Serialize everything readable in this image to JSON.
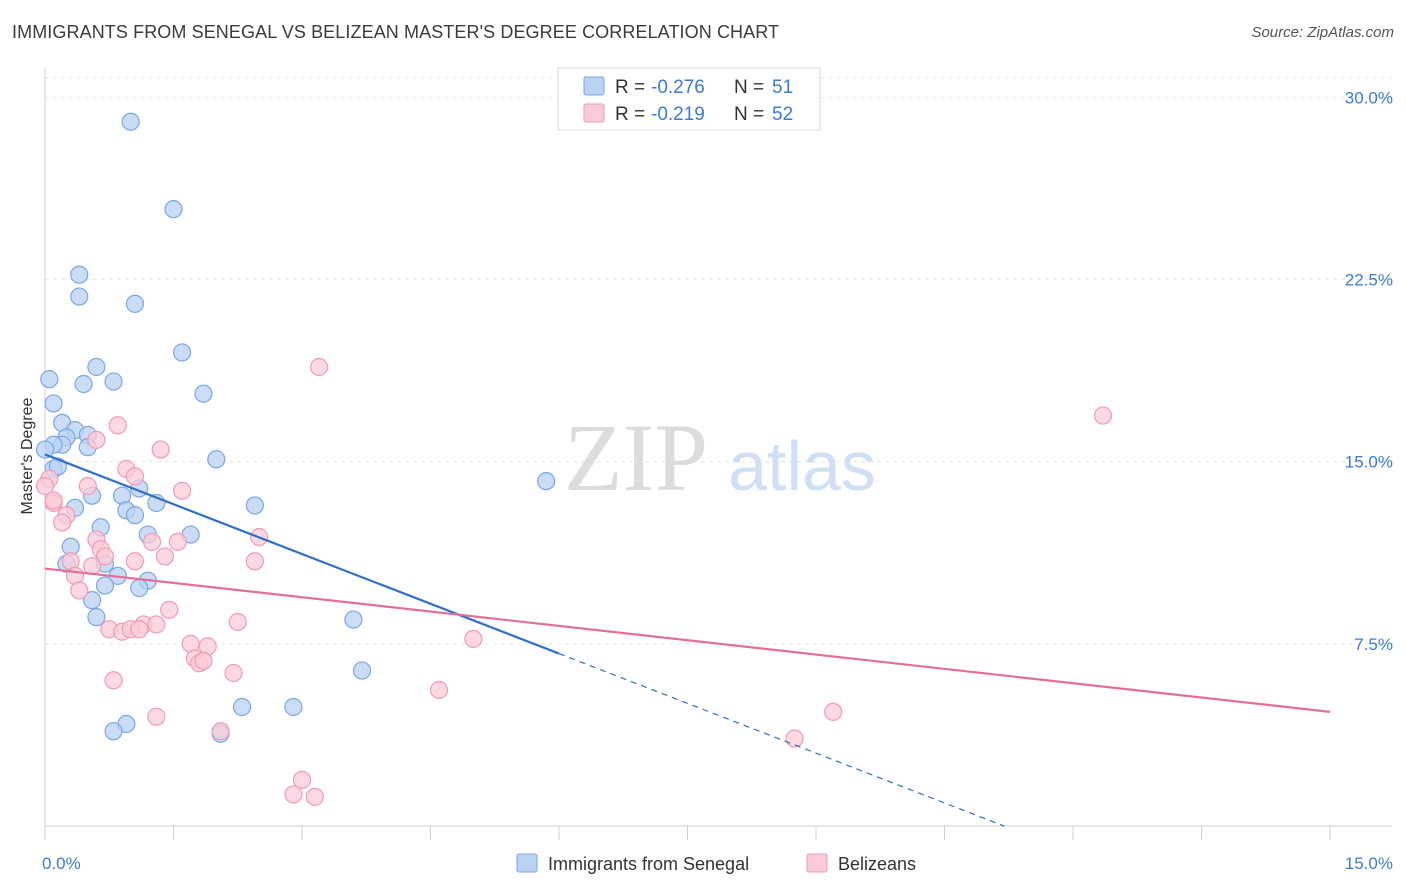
{
  "title": "IMMIGRANTS FROM SENEGAL VS BELIZEAN MASTER'S DEGREE CORRELATION CHART",
  "source": "Source: ZipAtlas.com",
  "chart_data": {
    "type": "scatter",
    "title": "IMMIGRANTS FROM SENEGAL VS BELIZEAN MASTER'S DEGREE CORRELATION CHART",
    "xlabel": "",
    "ylabel": "Master's Degree",
    "xlim": [
      0,
      15
    ],
    "ylim": [
      0,
      30.8
    ],
    "x_tick_labels": [
      "0.0%",
      "15.0%"
    ],
    "y_ticks": [
      7.5,
      15.0,
      22.5,
      30.0
    ],
    "y_tick_labels": [
      "7.5%",
      "15.0%",
      "22.5%",
      "30.0%"
    ],
    "watermark": {
      "zip": "ZIP",
      "atlas": "atlas"
    },
    "legend": {
      "r_label": "R =",
      "n_label": "N =",
      "entries": [
        {
          "r": "-0.276",
          "n": "51"
        },
        {
          "r": "-0.219",
          "n": "52"
        }
      ]
    },
    "series": [
      {
        "name": "Immigrants from Senegal",
        "color": "#7aa7e6",
        "fill": "#b9d1f3",
        "trend_color": "#2f6fcb",
        "trend": {
          "x0": 0.0,
          "y0": 15.3,
          "x1": 6.0,
          "y1": 7.1,
          "dash_to_x": 11.2
        },
        "points": [
          [
            1.0,
            29.0
          ],
          [
            1.5,
            25.4
          ],
          [
            0.4,
            22.7
          ],
          [
            0.4,
            21.8
          ],
          [
            1.05,
            21.5
          ],
          [
            1.6,
            19.5
          ],
          [
            0.6,
            18.9
          ],
          [
            0.45,
            18.2
          ],
          [
            0.8,
            18.3
          ],
          [
            1.85,
            17.8
          ],
          [
            0.05,
            18.4
          ],
          [
            0.1,
            17.4
          ],
          [
            0.2,
            16.6
          ],
          [
            0.35,
            16.3
          ],
          [
            0.5,
            16.1
          ],
          [
            0.25,
            16.0
          ],
          [
            0.2,
            15.7
          ],
          [
            0.1,
            15.7
          ],
          [
            0.5,
            15.6
          ],
          [
            2.0,
            15.1
          ],
          [
            0.1,
            14.7
          ],
          [
            5.85,
            14.2
          ],
          [
            1.1,
            13.9
          ],
          [
            0.9,
            13.6
          ],
          [
            0.55,
            13.6
          ],
          [
            1.3,
            13.3
          ],
          [
            2.45,
            13.2
          ],
          [
            0.35,
            13.1
          ],
          [
            0.95,
            13.0
          ],
          [
            1.05,
            12.8
          ],
          [
            0.65,
            12.3
          ],
          [
            1.2,
            12.0
          ],
          [
            1.7,
            12.0
          ],
          [
            0.3,
            11.5
          ],
          [
            0.7,
            10.8
          ],
          [
            0.25,
            10.8
          ],
          [
            0.85,
            10.3
          ],
          [
            1.2,
            10.1
          ],
          [
            0.7,
            9.9
          ],
          [
            1.1,
            9.8
          ],
          [
            0.55,
            9.3
          ],
          [
            0.6,
            8.6
          ],
          [
            3.6,
            8.5
          ],
          [
            3.7,
            6.4
          ],
          [
            2.3,
            4.9
          ],
          [
            2.9,
            4.9
          ],
          [
            0.95,
            4.2
          ],
          [
            0.8,
            3.9
          ],
          [
            2.05,
            3.8
          ],
          [
            0.0,
            15.5
          ],
          [
            0.15,
            14.8
          ]
        ]
      },
      {
        "name": "Belizeans",
        "color": "#f19bb5",
        "fill": "#f9cbd8",
        "trend_color": "#e46d9b",
        "trend": {
          "x0": 0.0,
          "y0": 10.6,
          "x1": 15.0,
          "y1": 4.7
        },
        "points": [
          [
            3.2,
            18.9
          ],
          [
            12.35,
            16.9
          ],
          [
            0.85,
            16.5
          ],
          [
            0.6,
            15.9
          ],
          [
            1.35,
            15.5
          ],
          [
            0.05,
            14.3
          ],
          [
            0.95,
            14.7
          ],
          [
            1.05,
            14.4
          ],
          [
            0.5,
            14.0
          ],
          [
            1.6,
            13.8
          ],
          [
            0.1,
            13.3
          ],
          [
            0.25,
            12.8
          ],
          [
            0.2,
            12.5
          ],
          [
            0.6,
            11.8
          ],
          [
            1.25,
            11.7
          ],
          [
            1.55,
            11.7
          ],
          [
            2.5,
            11.9
          ],
          [
            0.65,
            11.4
          ],
          [
            0.7,
            11.1
          ],
          [
            1.4,
            11.1
          ],
          [
            2.45,
            10.9
          ],
          [
            1.05,
            10.9
          ],
          [
            0.3,
            10.9
          ],
          [
            0.55,
            10.7
          ],
          [
            0.35,
            10.3
          ],
          [
            0.4,
            9.7
          ],
          [
            1.45,
            8.9
          ],
          [
            2.25,
            8.4
          ],
          [
            1.15,
            8.3
          ],
          [
            1.3,
            8.3
          ],
          [
            0.75,
            8.1
          ],
          [
            0.9,
            8.0
          ],
          [
            1.0,
            8.1
          ],
          [
            1.1,
            8.1
          ],
          [
            5.0,
            7.7
          ],
          [
            1.7,
            7.5
          ],
          [
            1.9,
            7.4
          ],
          [
            1.75,
            6.9
          ],
          [
            1.8,
            6.7
          ],
          [
            1.85,
            6.8
          ],
          [
            2.2,
            6.3
          ],
          [
            0.8,
            6.0
          ],
          [
            4.6,
            5.6
          ],
          [
            9.2,
            4.7
          ],
          [
            1.3,
            4.5
          ],
          [
            8.75,
            3.6
          ],
          [
            2.05,
            3.9
          ],
          [
            3.0,
            1.9
          ],
          [
            2.9,
            1.3
          ],
          [
            3.15,
            1.2
          ],
          [
            0.0,
            14.0
          ],
          [
            0.1,
            13.4
          ]
        ]
      }
    ]
  }
}
